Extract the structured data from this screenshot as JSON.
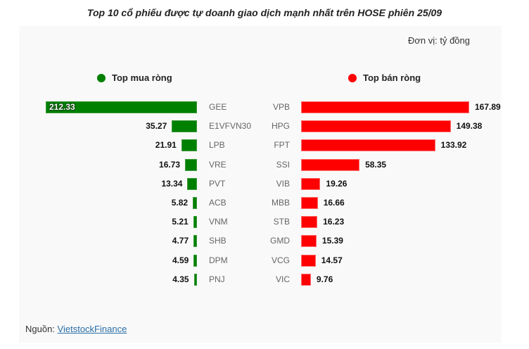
{
  "title": "Top 10 cổ phiếu được tự doanh giao dịch mạnh nhất trên HOSE phiên 25/09",
  "unit_label": "Đơn vị: tỷ đồng",
  "legend": {
    "buy": {
      "label": "Top mua ròng",
      "color": "#008000"
    },
    "sell": {
      "label": "Top bán ròng",
      "color": "#ff0000"
    }
  },
  "source": {
    "prefix": "Nguồn:",
    "link": "VietstockFinance"
  },
  "chart_data": {
    "type": "bar",
    "title": "Top 10 cổ phiếu được tự doanh giao dịch mạnh nhất trên HOSE phiên 25/09",
    "unit": "tỷ đồng",
    "orientation": "horizontal",
    "series": [
      {
        "name": "Top mua ròng",
        "color": "#008000",
        "categories": [
          "GEE",
          "E1VFVN30",
          "LPB",
          "VRE",
          "PVT",
          "ACB",
          "VNM",
          "SHB",
          "DPM",
          "PNJ"
        ],
        "values": [
          212.33,
          35.27,
          21.91,
          16.73,
          13.34,
          5.82,
          5.21,
          4.77,
          4.59,
          4.35
        ],
        "labels": [
          "212.33",
          "35.27",
          "21.91",
          "16.73",
          "13.34",
          "5.82",
          "5.21",
          "4.77",
          "4.59",
          "4.35"
        ]
      },
      {
        "name": "Top bán ròng",
        "color": "#ff0000",
        "categories": [
          "VPB",
          "HPG",
          "FPT",
          "SSI",
          "VIB",
          "MBB",
          "STB",
          "GMD",
          "VCG",
          "VIC"
        ],
        "values": [
          167.89,
          149.38,
          133.92,
          58.35,
          19.26,
          16.66,
          16.23,
          15.39,
          14.57,
          9.76
        ],
        "labels": [
          "167.89",
          "149.38",
          "133.92",
          "58.35",
          "19.26",
          "16.66",
          "16.23",
          "15.39",
          "14.57",
          "9.76"
        ]
      }
    ],
    "legend_position": "top",
    "grid": false
  }
}
